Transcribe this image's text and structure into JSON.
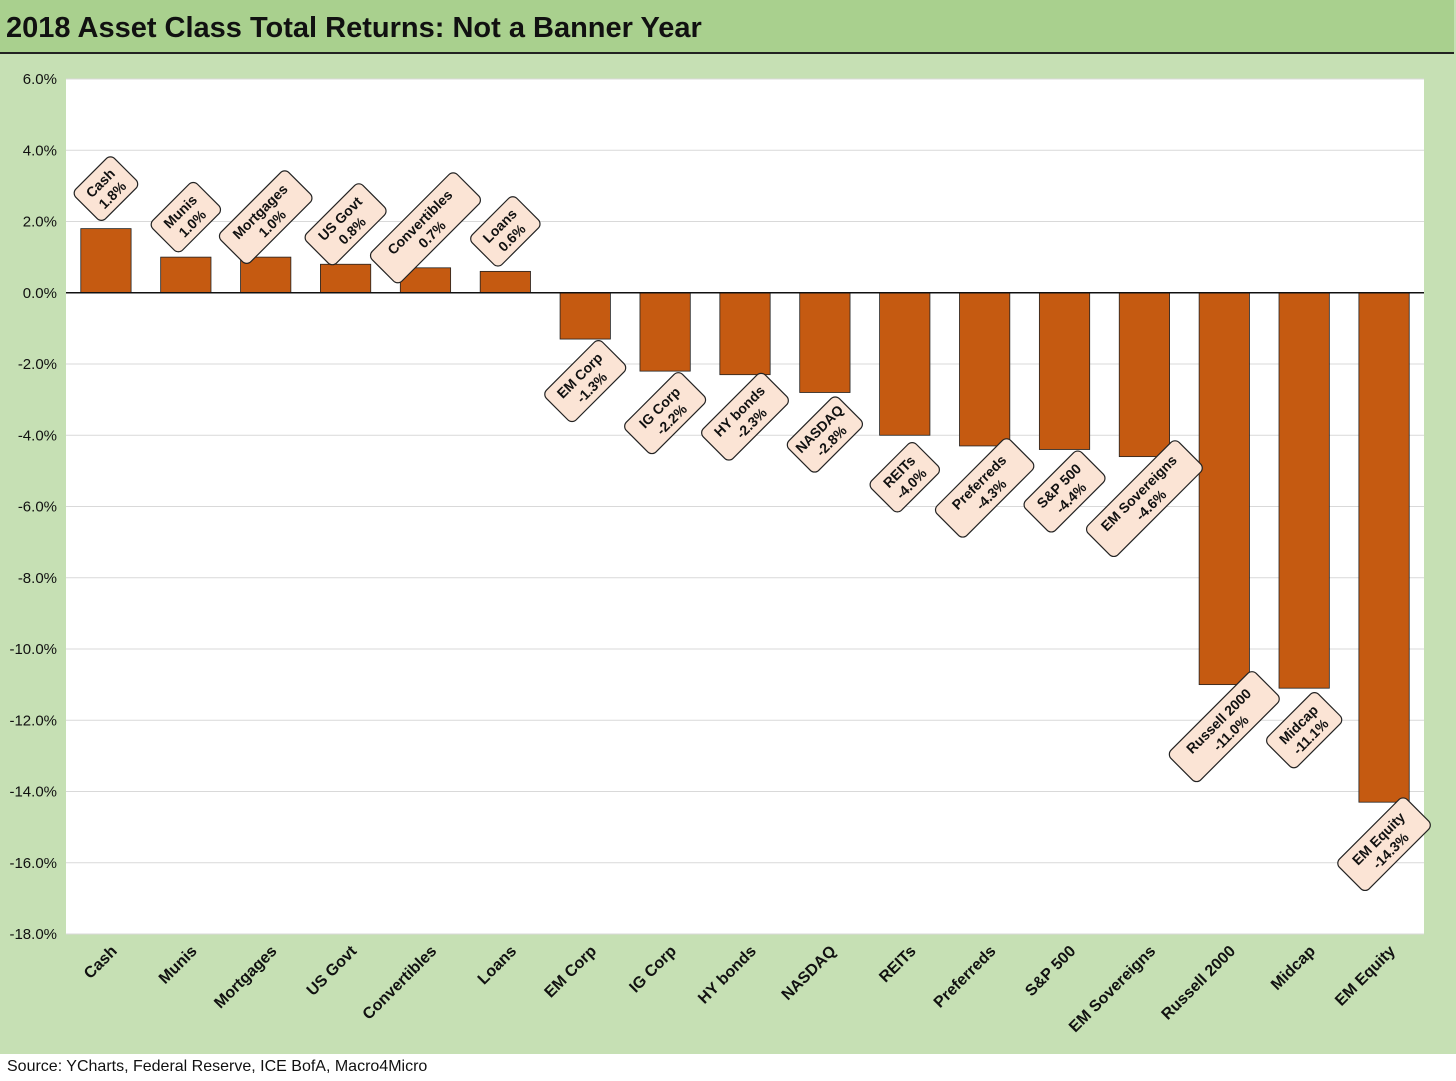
{
  "title": "2018 Asset Class Total Returns: Not a Banner Year",
  "source": "Source: YCharts, Federal Reserve, ICE BofA, Macro4Micro",
  "colors": {
    "bar": "#c55a11",
    "label_fill": "#fbe4d5",
    "frame": "#c6e0b4",
    "title_band": "#a9d08e",
    "grid": "#d9d9d9"
  },
  "chart_data": {
    "type": "bar",
    "title": "2018 Asset Class Total Returns: Not a Banner Year",
    "categories": [
      "Cash",
      "Munis",
      "Mortgages",
      "US Govt",
      "Convertibles",
      "Loans",
      "EM Corp",
      "IG Corp",
      "HY bonds",
      "NASDAQ",
      "REITs",
      "Preferreds",
      "S&P 500",
      "EM Sovereigns",
      "Russell 2000",
      "Midcap",
      "EM Equity"
    ],
    "values": [
      1.8,
      1.0,
      1.0,
      0.8,
      0.7,
      0.6,
      -1.3,
      -2.2,
      -2.3,
      -2.8,
      -4.0,
      -4.3,
      -4.4,
      -4.6,
      -11.0,
      -11.1,
      -14.3
    ],
    "data_labels": [
      "1.8%",
      "1.0%",
      "1.0%",
      "0.8%",
      "0.7%",
      "0.6%",
      "-1.3%",
      "-2.2%",
      "-2.3%",
      "-2.8%",
      "-4.0%",
      "-4.3%",
      "-4.4%",
      "-4.6%",
      "-11.0%",
      "-11.1%",
      "-14.3%"
    ],
    "ylim": [
      -18,
      6
    ],
    "yticks": [
      6,
      4,
      2,
      0,
      -2,
      -4,
      -6,
      -8,
      -10,
      -12,
      -14,
      -16,
      -18
    ],
    "ytick_labels": [
      "6.0%",
      "4.0%",
      "2.0%",
      "0.0%",
      "-2.0%",
      "-4.0%",
      "-6.0%",
      "-8.0%",
      "-10.0%",
      "-12.0%",
      "-14.0%",
      "-16.0%",
      "-18.0%"
    ],
    "grid": true,
    "legend": "none",
    "xlabel": "",
    "ylabel": ""
  }
}
